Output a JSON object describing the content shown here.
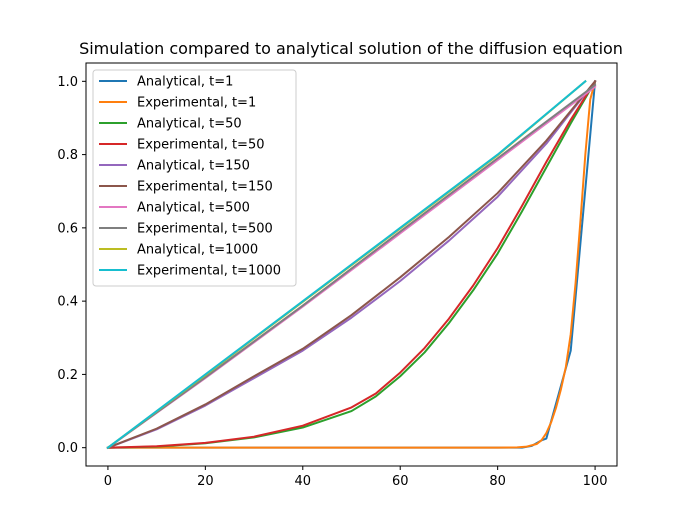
{
  "chart_data": {
    "type": "line",
    "title": "Simulation compared to analytical solution of the diffusion equation",
    "xlabel": "",
    "ylabel": "",
    "xlim": [
      -4.5,
      104.5
    ],
    "ylim": [
      -0.05,
      1.05
    ],
    "x_ticks": [
      0,
      20,
      40,
      60,
      80,
      100
    ],
    "y_ticks": [
      0.0,
      0.2,
      0.4,
      0.6,
      0.8,
      1.0
    ],
    "x_tick_labels": [
      "0",
      "20",
      "40",
      "60",
      "80",
      "100"
    ],
    "y_tick_labels": [
      "0.0",
      "0.2",
      "0.4",
      "0.6",
      "0.8",
      "1.0"
    ],
    "grid": false,
    "legend_position": "upper-left",
    "series": [
      {
        "name": "Analytical, t=1",
        "color": "#1f77b4",
        "x": [
          0,
          80,
          85,
          87,
          89,
          90,
          95,
          100
        ],
        "y": [
          0,
          0,
          0,
          0.005,
          0.02,
          0.025,
          0.265,
          1.0
        ]
      },
      {
        "name": "Experimental, t=1",
        "color": "#ff7f0e",
        "x": [
          0,
          80,
          84,
          86,
          88,
          89,
          90,
          91,
          92,
          93,
          94,
          95,
          96,
          97,
          98,
          99,
          100
        ],
        "y": [
          0,
          0,
          0.001,
          0.003,
          0.01,
          0.02,
          0.04,
          0.07,
          0.11,
          0.16,
          0.22,
          0.31,
          0.45,
          0.62,
          0.8,
          0.95,
          1.0
        ]
      },
      {
        "name": "Analytical, t=50",
        "color": "#2ca02c",
        "x": [
          0,
          10,
          20,
          30,
          40,
          50,
          55,
          60,
          65,
          70,
          75,
          80,
          85,
          90,
          95,
          100
        ],
        "y": [
          0,
          0.003,
          0.012,
          0.028,
          0.055,
          0.1,
          0.14,
          0.195,
          0.26,
          0.34,
          0.43,
          0.53,
          0.645,
          0.765,
          0.885,
          1.0
        ]
      },
      {
        "name": "Experimental, t=50",
        "color": "#d62728",
        "x": [
          0,
          10,
          20,
          30,
          40,
          50,
          55,
          60,
          65,
          70,
          75,
          80,
          85,
          90,
          95,
          100
        ],
        "y": [
          0,
          0.004,
          0.013,
          0.03,
          0.06,
          0.11,
          0.148,
          0.205,
          0.272,
          0.352,
          0.443,
          0.545,
          0.66,
          0.78,
          0.895,
          1.0
        ]
      },
      {
        "name": "Analytical, t=150",
        "color": "#9467bd",
        "x": [
          0,
          10,
          20,
          30,
          40,
          50,
          60,
          70,
          80,
          90,
          100
        ],
        "y": [
          0,
          0.05,
          0.115,
          0.19,
          0.265,
          0.355,
          0.455,
          0.565,
          0.685,
          0.83,
          1.0
        ]
      },
      {
        "name": "Experimental, t=150",
        "color": "#8c564b",
        "x": [
          0,
          10,
          20,
          30,
          40,
          50,
          60,
          70,
          80,
          90,
          100
        ],
        "y": [
          0,
          0.052,
          0.118,
          0.195,
          0.27,
          0.362,
          0.465,
          0.575,
          0.695,
          0.838,
          1.0
        ]
      },
      {
        "name": "Analytical, t=500",
        "color": "#e377c2",
        "x": [
          0,
          20,
          40,
          60,
          80,
          100
        ],
        "y": [
          0,
          0.19,
          0.385,
          0.585,
          0.785,
          0.985
        ]
      },
      {
        "name": "Experimental, t=500",
        "color": "#7f7f7f",
        "x": [
          0,
          20,
          40,
          60,
          80,
          100
        ],
        "y": [
          0,
          0.192,
          0.388,
          0.59,
          0.79,
          0.99
        ]
      },
      {
        "name": "Analytical, t=1000",
        "color": "#bcbd22",
        "x": [
          0,
          20,
          40,
          60,
          80,
          98
        ],
        "y": [
          0,
          0.198,
          0.398,
          0.598,
          0.798,
          1.0
        ]
      },
      {
        "name": "Experimental, t=1000",
        "color": "#17becf",
        "x": [
          0,
          20,
          40,
          60,
          80,
          98
        ],
        "y": [
          0,
          0.2,
          0.4,
          0.6,
          0.8,
          1.0
        ]
      }
    ]
  }
}
